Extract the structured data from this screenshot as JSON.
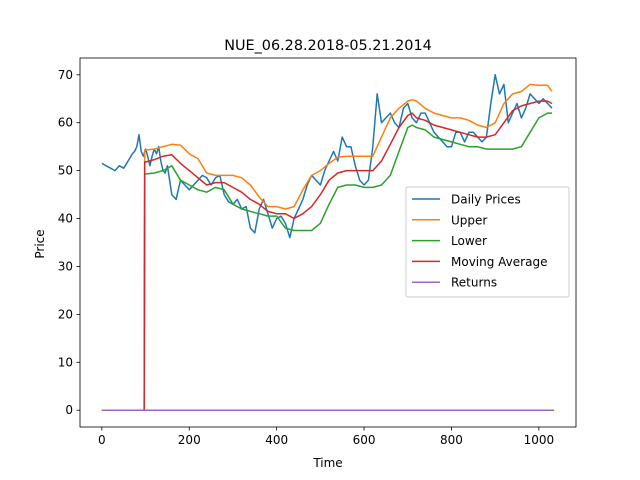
{
  "chart_data": {
    "type": "line",
    "title": "NUE_06.28.2018-05.21.2014",
    "xlabel": "Time",
    "ylabel": "Price",
    "xlim": [
      -50,
      1085
    ],
    "ylim": [
      -3.5,
      73.5
    ],
    "xticks": [
      0,
      200,
      400,
      600,
      800,
      1000
    ],
    "yticks": [
      0,
      10,
      20,
      30,
      40,
      50,
      60,
      70
    ],
    "grid": false,
    "legend_position": "center-right",
    "series": [
      {
        "name": "Daily Prices",
        "color": "#1f77b4",
        "x": [
          0,
          10,
          20,
          30,
          40,
          50,
          60,
          70,
          75,
          80,
          85,
          90,
          95,
          100,
          105,
          110,
          115,
          120,
          125,
          130,
          135,
          140,
          145,
          150,
          160,
          170,
          180,
          190,
          200,
          210,
          220,
          230,
          240,
          250,
          260,
          270,
          280,
          290,
          300,
          310,
          320,
          330,
          340,
          350,
          360,
          370,
          380,
          390,
          400,
          410,
          420,
          430,
          440,
          450,
          460,
          470,
          480,
          490,
          500,
          510,
          520,
          530,
          540,
          550,
          560,
          570,
          580,
          590,
          600,
          610,
          620,
          630,
          640,
          650,
          660,
          670,
          680,
          690,
          700,
          710,
          720,
          730,
          740,
          750,
          760,
          770,
          780,
          790,
          800,
          810,
          820,
          830,
          840,
          850,
          860,
          870,
          880,
          890,
          900,
          910,
          920,
          930,
          940,
          950,
          960,
          970,
          980,
          990,
          1000,
          1010,
          1020,
          1030
        ],
        "y": [
          51.5,
          51,
          50.5,
          50,
          51,
          50.5,
          52,
          53.5,
          54,
          55,
          57.5,
          54,
          53,
          54.5,
          53,
          51,
          53,
          54.5,
          53.5,
          55,
          52,
          50,
          49.5,
          51,
          45,
          44,
          48,
          47,
          46,
          47,
          48,
          49,
          48.5,
          47,
          48.5,
          49,
          45,
          43.5,
          43,
          44,
          42,
          42.5,
          38,
          37,
          42,
          44,
          41,
          38,
          40,
          40.5,
          39,
          36,
          40,
          42,
          44,
          47,
          49,
          48,
          47,
          50,
          52,
          54,
          52,
          57,
          55,
          55,
          51,
          48,
          47,
          48,
          55,
          66,
          60,
          61,
          62,
          60,
          59,
          63,
          64,
          61,
          60,
          62,
          62,
          60,
          58,
          57,
          56,
          55,
          55,
          58,
          58,
          56,
          58,
          58,
          57,
          56,
          57,
          64,
          70,
          66,
          68,
          60,
          62,
          64,
          61,
          63,
          66,
          65,
          64,
          65,
          64,
          63
        ],
        "visible_range": [
          0,
          1035
        ]
      },
      {
        "name": "Upper",
        "color": "#ff7f0e",
        "x": [
          0,
          94,
          97,
          98,
          100,
          120,
          140,
          160,
          180,
          200,
          220,
          240,
          260,
          280,
          300,
          320,
          340,
          360,
          380,
          400,
          420,
          440,
          460,
          480,
          500,
          520,
          540,
          560,
          580,
          600,
          620,
          640,
          660,
          680,
          700,
          710,
          720,
          740,
          760,
          780,
          800,
          820,
          840,
          860,
          880,
          900,
          920,
          940,
          960,
          980,
          1000,
          1020,
          1030
        ],
        "y": [
          0,
          0,
          0,
          54.3,
          54.3,
          54.5,
          55,
          55.5,
          55.3,
          53.5,
          52.5,
          49.5,
          49,
          49,
          49,
          48.5,
          47,
          44.5,
          42.5,
          42.5,
          42,
          42.5,
          46,
          49,
          50,
          51.5,
          52.8,
          53,
          53,
          53,
          53,
          57,
          61,
          63,
          64.5,
          64.8,
          64.5,
          63,
          62,
          61.5,
          61,
          61,
          60.5,
          59.5,
          59,
          60,
          64,
          66,
          66.5,
          68,
          67.8,
          67.8,
          66.5
        ]
      },
      {
        "name": "Lower",
        "color": "#2ca02c",
        "x": [
          0,
          94,
          97,
          98,
          100,
          120,
          140,
          160,
          180,
          200,
          220,
          240,
          260,
          280,
          300,
          320,
          340,
          360,
          380,
          400,
          420,
          440,
          460,
          480,
          500,
          520,
          540,
          560,
          580,
          600,
          620,
          640,
          660,
          680,
          700,
          710,
          720,
          740,
          760,
          780,
          800,
          820,
          840,
          860,
          880,
          900,
          920,
          940,
          960,
          980,
          1000,
          1020,
          1030
        ],
        "y": [
          0,
          0,
          0,
          49.3,
          49.3,
          49.5,
          50,
          51,
          48,
          47,
          46,
          45.5,
          46.5,
          46,
          43,
          42,
          41.5,
          41,
          40.5,
          40.5,
          38,
          37.5,
          37.5,
          37.5,
          39,
          43,
          46.5,
          47,
          47,
          46.5,
          46.5,
          47,
          49,
          54,
          59,
          59.5,
          59,
          58.5,
          57,
          56.5,
          56,
          55.5,
          55,
          55,
          54.5,
          54.5,
          54.5,
          54.5,
          55,
          58,
          61,
          62,
          62
        ]
      },
      {
        "name": "Moving Average",
        "color": "#d62728",
        "x": [
          0,
          94,
          97,
          98,
          100,
          120,
          140,
          160,
          180,
          200,
          220,
          240,
          260,
          280,
          300,
          320,
          340,
          360,
          380,
          400,
          420,
          440,
          460,
          480,
          500,
          520,
          540,
          560,
          580,
          600,
          620,
          640,
          660,
          680,
          700,
          710,
          720,
          740,
          760,
          780,
          800,
          820,
          840,
          860,
          880,
          900,
          920,
          940,
          960,
          980,
          1000,
          1020,
          1030
        ],
        "y": [
          0,
          0,
          0,
          51.8,
          51.8,
          52.3,
          53,
          53.3,
          51.5,
          50,
          48.5,
          47,
          47.5,
          47.5,
          46.5,
          45.5,
          44,
          43,
          41.5,
          41,
          41,
          40,
          41,
          42.5,
          45,
          48,
          49.5,
          50,
          50,
          50,
          50,
          52,
          55.5,
          59,
          61.5,
          62,
          61,
          60.5,
          59.5,
          59,
          58.5,
          58,
          57.5,
          57,
          57,
          57.5,
          60,
          62.5,
          63.5,
          64,
          64.5,
          64.5,
          64
        ]
      },
      {
        "name": "Returns",
        "color": "#9467bd",
        "x": [
          0,
          100,
          200,
          300,
          400,
          500,
          600,
          700,
          800,
          900,
          1000,
          1035
        ],
        "y": [
          0,
          0,
          0,
          0,
          0,
          0,
          0,
          0,
          0,
          0,
          0,
          0
        ]
      }
    ]
  }
}
